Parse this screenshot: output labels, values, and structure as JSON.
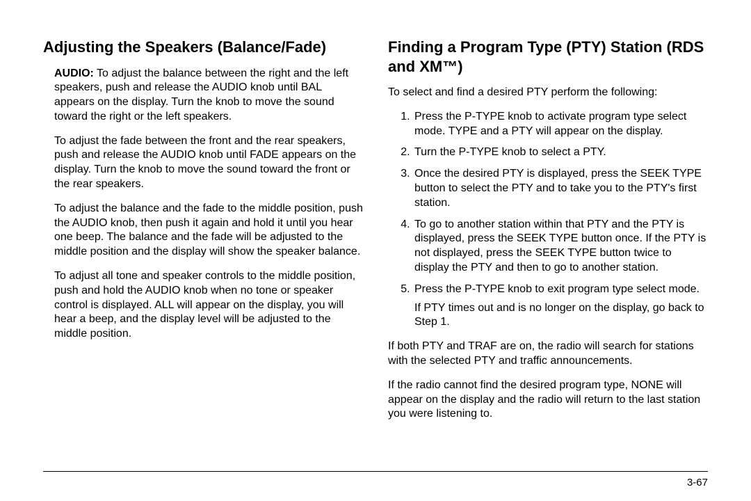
{
  "left": {
    "heading": "Adjusting the Speakers (Balance/Fade)",
    "audio_label": "AUDIO:",
    "p1": " To adjust the balance between the right and the left speakers, push and release the AUDIO knob until BAL appears on the display. Turn the knob to move the sound toward the right or the left speakers.",
    "p2": "To adjust the fade between the front and the rear speakers, push and release the AUDIO knob until FADE appears on the display. Turn the knob to move the sound toward the front or the rear speakers.",
    "p3": "To adjust the balance and the fade to the middle position, push the AUDIO knob, then push it again and hold it until you hear one beep. The balance and the fade will be adjusted to the middle position and the display will show the speaker balance.",
    "p4": "To adjust all tone and speaker controls to the middle position, push and hold the AUDIO knob when no tone or speaker control is displayed. ALL will appear on the display, you will hear a beep, and the display level will be adjusted to the middle position."
  },
  "right": {
    "heading": "Finding a Program Type (PTY) Station (RDS and XM™)",
    "intro": "To select and find a desired PTY perform the following:",
    "steps": {
      "s1": "Press the P-TYPE knob to activate program type select mode. TYPE and a PTY will appear on the display.",
      "s2": "Turn the P-TYPE knob to select a PTY.",
      "s3": "Once the desired PTY is displayed, press the SEEK TYPE button to select the PTY and to take you to the PTY's first station.",
      "s4": "To go to another station within that PTY and the PTY is displayed, press the SEEK TYPE button once. If the PTY is not displayed, press the SEEK TYPE button twice to display the PTY and then to go to another station.",
      "s5": "Press the P-TYPE knob to exit program type select mode.",
      "s5note": "If PTY times out and is no longer on the display, go back to Step 1."
    },
    "p_after1": "If both PTY and TRAF are on, the radio will search for stations with the selected PTY and traffic announcements.",
    "p_after2": "If the radio cannot find the desired program type, NONE will appear on the display and the radio will return to the last station you were listening to."
  },
  "page_number": "3-67"
}
